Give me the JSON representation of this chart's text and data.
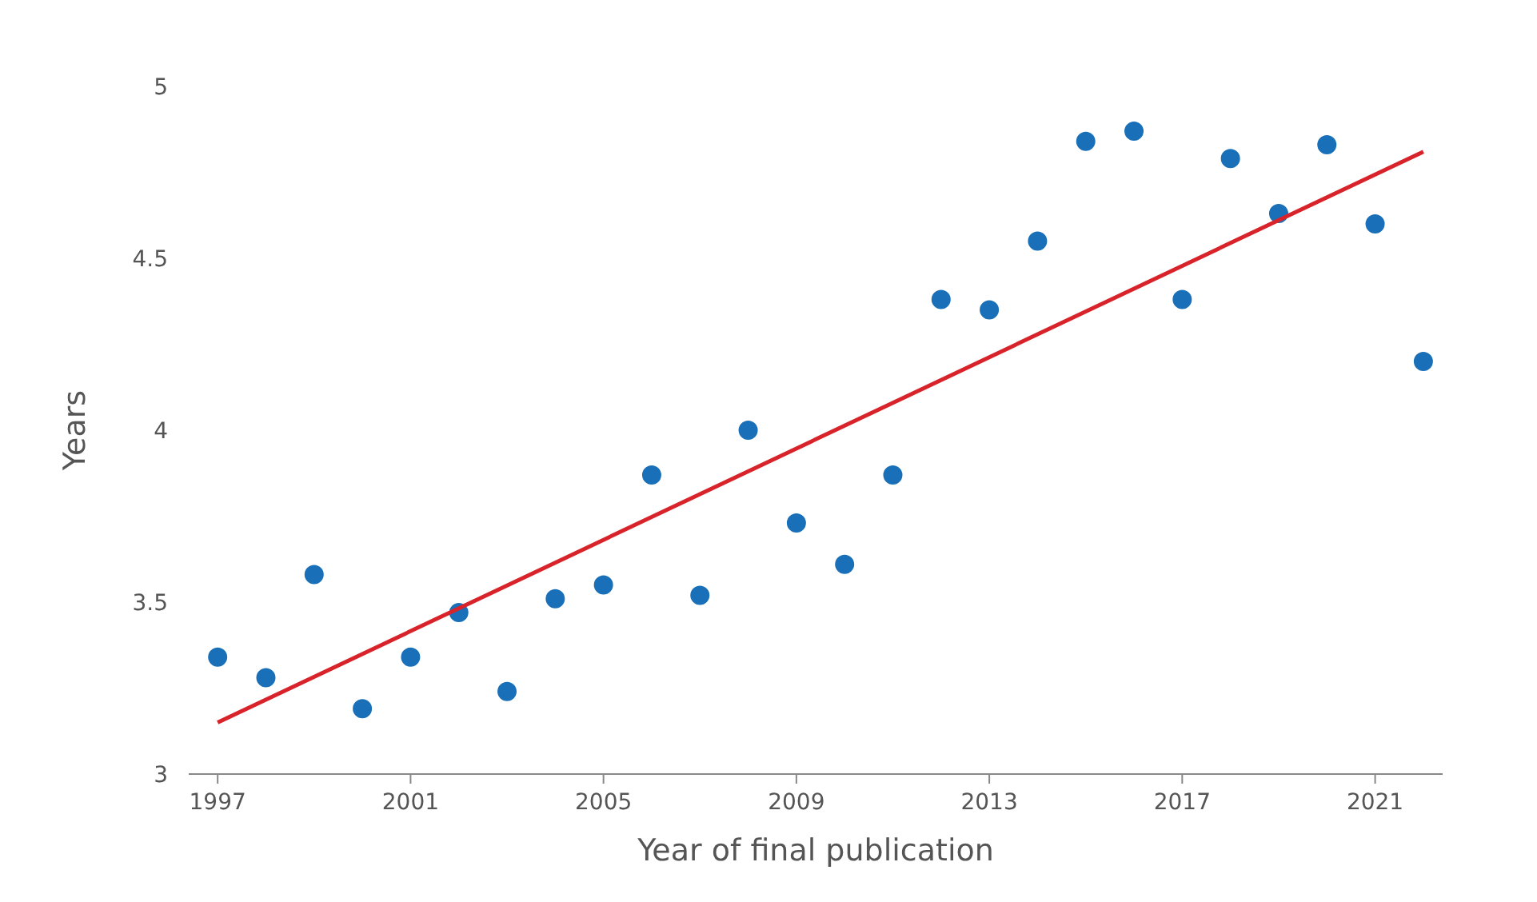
{
  "chart_data": {
    "type": "scatter",
    "xlabel": "Year of final publication",
    "ylabel": "Years",
    "xlim": [
      1996.4,
      2022.4
    ],
    "ylim": [
      3,
      5
    ],
    "xticks": [
      1997,
      2001,
      2005,
      2009,
      2013,
      2017,
      2021
    ],
    "yticks": [
      3,
      3.5,
      4,
      4.5,
      5
    ],
    "grid": false,
    "series": [
      {
        "color": "#1a70b8",
        "marker": "circle",
        "x": [
          1997,
          1998,
          1999,
          2000,
          2001,
          2002,
          2003,
          2004,
          2005,
          2006,
          2007,
          2008,
          2009,
          2010,
          2011,
          2012,
          2013,
          2014,
          2015,
          2016,
          2017,
          2018,
          2019,
          2020,
          2021,
          2022
        ],
        "values": [
          3.34,
          3.28,
          3.58,
          3.19,
          3.34,
          3.47,
          3.24,
          3.51,
          3.55,
          3.87,
          3.52,
          4.0,
          3.73,
          3.61,
          3.87,
          4.38,
          4.35,
          4.55,
          4.84,
          4.87,
          4.38,
          4.79,
          4.63,
          4.83,
          4.6,
          4.2
        ]
      },
      {
        "type": "line",
        "color": "#d9232a",
        "x": [
          1997,
          2022
        ],
        "values": [
          3.15,
          4.81
        ]
      }
    ]
  }
}
